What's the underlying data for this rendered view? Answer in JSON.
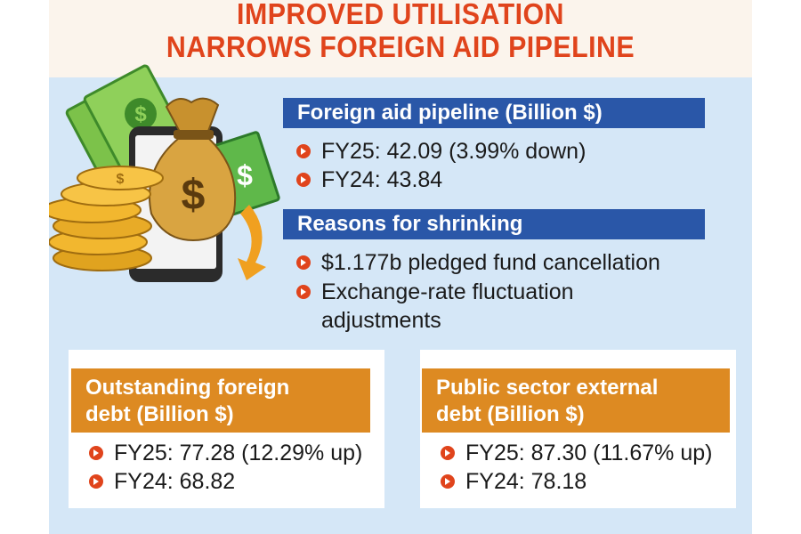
{
  "title": {
    "line1": "IMPROVED UTILISATION",
    "line2": "NARROWS FOREIGN AID PIPELINE"
  },
  "pipeline": {
    "heading": "Foreign aid pipeline (Billion $)",
    "items": [
      "FY25: 42.09 (3.99% down)",
      "FY24: 43.84"
    ]
  },
  "reasons": {
    "heading": "Reasons for shrinking",
    "items": [
      "$1.177b pledged fund cancellation",
      "Exchange-rate fluctuation",
      "adjustments"
    ]
  },
  "outstanding_debt": {
    "heading_line1": "Outstanding foreign",
    "heading_line2": "debt (Billion $)",
    "items": [
      "FY25: 77.28 (12.29% up)",
      "FY24: 68.82"
    ]
  },
  "public_debt": {
    "heading_line1": "Public sector external",
    "heading_line2": "debt (Billion $)",
    "items": [
      "FY25: 87.30 (11.67% up)",
      "FY24: 78.18"
    ]
  },
  "illustration": {
    "icons": [
      "money-bag-icon",
      "phone-icon",
      "coin-stack-icon",
      "banknote-icon",
      "down-arrow-icon"
    ],
    "dollar_symbol": "$"
  },
  "colors": {
    "title": "#e0441c",
    "blue_bar": "#2a57a8",
    "orange_bar": "#dd8a22",
    "panel": "#d5e7f7",
    "bullet": "#e0441c"
  }
}
